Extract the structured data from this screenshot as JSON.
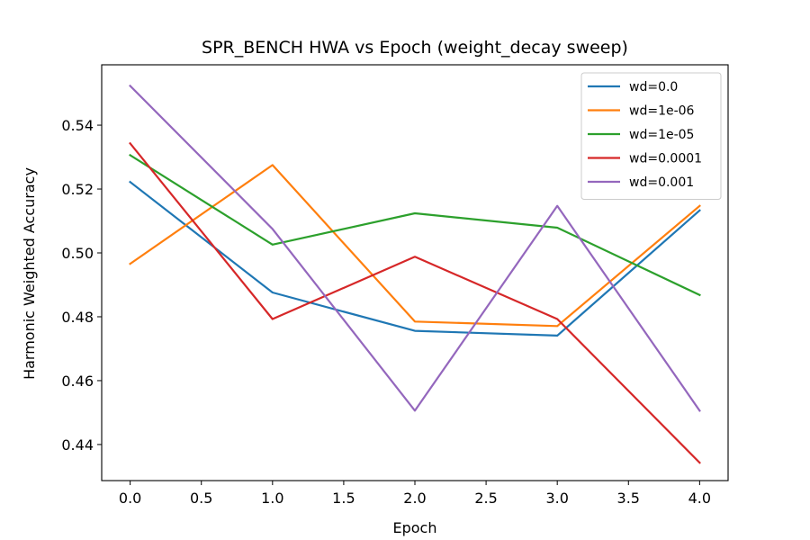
{
  "chart_data": {
    "type": "line",
    "title": "SPR_BENCH HWA vs Epoch (weight_decay sweep)",
    "xlabel": "Epoch",
    "ylabel": "Harmonic Weighted Accuracy",
    "xlim": [
      -0.2,
      4.2
    ],
    "ylim": [
      0.4287,
      0.5589
    ],
    "xticks": [
      0.0,
      0.5,
      1.0,
      1.5,
      2.0,
      2.5,
      3.0,
      3.5,
      4.0
    ],
    "xtick_labels": [
      "0.0",
      "0.5",
      "1.0",
      "1.5",
      "2.0",
      "2.5",
      "3.0",
      "3.5",
      "4.0"
    ],
    "yticks": [
      0.44,
      0.46,
      0.48,
      0.5,
      0.52,
      0.54
    ],
    "ytick_labels": [
      "0.44",
      "0.46",
      "0.48",
      "0.50",
      "0.52",
      "0.54"
    ],
    "grid": false,
    "legend_position": "top-right",
    "x": [
      0,
      1,
      2,
      3,
      4
    ],
    "series": [
      {
        "name": "wd=0.0",
        "color": "#1f77b4",
        "values": [
          0.5222,
          0.4876,
          0.4756,
          0.4741,
          0.5133
        ]
      },
      {
        "name": "wd=1e-06",
        "color": "#ff7f0e",
        "values": [
          0.4966,
          0.5275,
          0.4785,
          0.4771,
          0.5147
        ]
      },
      {
        "name": "wd=1e-05",
        "color": "#2ca02c",
        "values": [
          0.5306,
          0.5026,
          0.5124,
          0.5079,
          0.4868
        ]
      },
      {
        "name": "wd=0.0001",
        "color": "#d62728",
        "values": [
          0.5343,
          0.4793,
          0.4988,
          0.4793,
          0.4343
        ]
      },
      {
        "name": "wd=0.001",
        "color": "#9467bd",
        "values": [
          0.5523,
          0.5075,
          0.4506,
          0.5147,
          0.4506
        ]
      }
    ]
  }
}
